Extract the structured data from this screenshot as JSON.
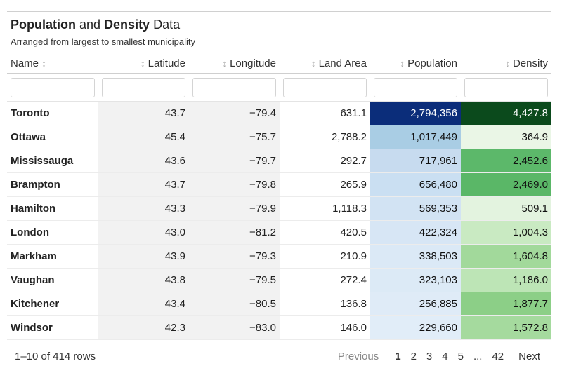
{
  "title": {
    "part1": "Population",
    "part2": " and ",
    "part3": "Density",
    "part4": " Data"
  },
  "subtitle": "Arranged from largest to smallest municipality",
  "columns": [
    {
      "label": "Name",
      "sort_icon": "↕"
    },
    {
      "label": "Latitude",
      "sort_icon": "↕"
    },
    {
      "label": "Longitude",
      "sort_icon": "↕"
    },
    {
      "label": "Land Area",
      "sort_icon": "↕"
    },
    {
      "label": "Population",
      "sort_icon": "↕"
    },
    {
      "label": "Density",
      "sort_icon": "↕"
    }
  ],
  "rows": [
    {
      "name": "Toronto",
      "lat": "43.7",
      "lon": "−79.4",
      "area": "631.1",
      "pop": "2,794,356",
      "density": "4,427.8",
      "pop_bg": "#0b2d7a",
      "pop_fg": "#ffffff",
      "den_bg": "#0b4a1c",
      "den_fg": "#ffffff"
    },
    {
      "name": "Ottawa",
      "lat": "45.4",
      "lon": "−75.7",
      "area": "2,788.2",
      "pop": "1,017,449",
      "density": "364.9",
      "pop_bg": "#a9cde4",
      "pop_fg": "#111111",
      "den_bg": "#eaf6e6",
      "den_fg": "#111111"
    },
    {
      "name": "Mississauga",
      "lat": "43.6",
      "lon": "−79.7",
      "area": "292.7",
      "pop": "717,961",
      "density": "2,452.6",
      "pop_bg": "#c7dbef",
      "pop_fg": "#111111",
      "den_bg": "#5cb86a",
      "den_fg": "#111111"
    },
    {
      "name": "Brampton",
      "lat": "43.7",
      "lon": "−79.8",
      "area": "265.9",
      "pop": "656,480",
      "density": "2,469.0",
      "pop_bg": "#cadff2",
      "pop_fg": "#111111",
      "den_bg": "#5ab767",
      "den_fg": "#111111"
    },
    {
      "name": "Hamilton",
      "lat": "43.3",
      "lon": "−79.9",
      "area": "1,118.3",
      "pop": "569,353",
      "density": "509.1",
      "pop_bg": "#d2e3f3",
      "pop_fg": "#111111",
      "den_bg": "#e3f3df",
      "den_fg": "#111111"
    },
    {
      "name": "London",
      "lat": "43.0",
      "lon": "−81.2",
      "area": "420.5",
      "pop": "422,324",
      "density": "1,004.3",
      "pop_bg": "#d7e6f5",
      "pop_fg": "#111111",
      "den_bg": "#c9eac2",
      "den_fg": "#111111"
    },
    {
      "name": "Markham",
      "lat": "43.9",
      "lon": "−79.3",
      "area": "210.9",
      "pop": "338,503",
      "density": "1,604.8",
      "pop_bg": "#dbe9f6",
      "pop_fg": "#111111",
      "den_bg": "#a2d99b",
      "den_fg": "#111111"
    },
    {
      "name": "Vaughan",
      "lat": "43.8",
      "lon": "−79.5",
      "area": "272.4",
      "pop": "323,103",
      "density": "1,186.0",
      "pop_bg": "#dceaf6",
      "pop_fg": "#111111",
      "den_bg": "#bde5b6",
      "den_fg": "#111111"
    },
    {
      "name": "Kitchener",
      "lat": "43.4",
      "lon": "−80.5",
      "area": "136.8",
      "pop": "256,885",
      "density": "1,877.7",
      "pop_bg": "#dfebf7",
      "pop_fg": "#111111",
      "den_bg": "#8ccf87",
      "den_fg": "#111111"
    },
    {
      "name": "Windsor",
      "lat": "42.3",
      "lon": "−83.0",
      "area": "146.0",
      "pop": "229,660",
      "density": "1,572.8",
      "pop_bg": "#e1edf8",
      "pop_fg": "#111111",
      "den_bg": "#a5da9e",
      "den_fg": "#111111"
    }
  ],
  "footer": {
    "rows_text": "1–10 of 414 rows",
    "previous": "Previous",
    "pages": [
      "1",
      "2",
      "3",
      "4",
      "5",
      "...",
      "42"
    ],
    "current_page": "1",
    "next": "Next"
  }
}
